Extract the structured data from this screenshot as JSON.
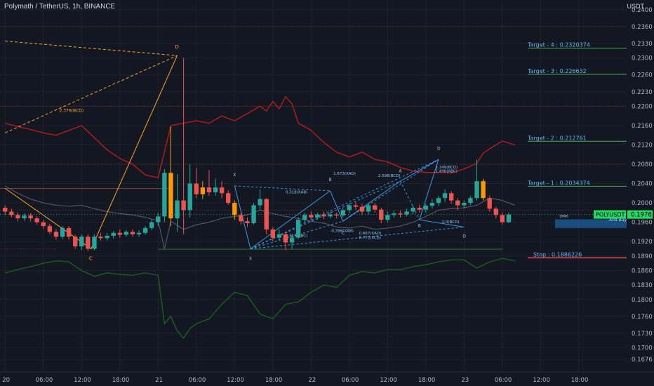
{
  "header": {
    "title": "Polymath / TetherUS, 1h, BINANCE",
    "currency": "USDT"
  },
  "colors": {
    "background": "#131722",
    "grid": "#1e222d",
    "text": "#b2b5be",
    "candle_up": "#26a69a",
    "candle_down": "#ef5350",
    "candle_highlight": "#ff9800",
    "harmonic_orange": "#ffa726",
    "harmonic_blue": "#42a5f5",
    "band_red": "#b71c1c",
    "band_green": "#1b5e20",
    "target_green": "#4caf50",
    "stop_red": "#ef5350",
    "price_tag": "#26d966"
  },
  "chart_data": {
    "type": "candlestick",
    "title": "Polymath / TetherUS, 1h, BINANCE",
    "xlabel": "",
    "ylabel": "USDT",
    "ylim": [
      0.165,
      0.242
    ],
    "ytick_labels": [
      "0.2400",
      "0.2360",
      "0.2330",
      "0.2300",
      "0.2260",
      "0.2230",
      "0.2200",
      "0.2160",
      "0.2120",
      "0.2080",
      "0.2040",
      "0.2000",
      "0.1960",
      "0.1920",
      "0.1890",
      "0.1860",
      "0.1830",
      "0.1800",
      "0.1760",
      "0.1730",
      "0.1700",
      "0.1676"
    ],
    "ytick_values": [
      0.24,
      0.2365,
      0.233,
      0.23,
      0.2265,
      0.223,
      0.22,
      0.216,
      0.212,
      0.208,
      0.204,
      0.2,
      0.196,
      0.192,
      0.189,
      0.186,
      0.183,
      0.18,
      0.1765,
      0.173,
      0.17,
      0.1676
    ],
    "xtick_labels": [
      "20",
      "06:00",
      "12:00",
      "18:00",
      "21",
      "06:00",
      "12:00",
      "18:00",
      "22",
      "06:00",
      "12:00",
      "18:00",
      "23",
      "06:00",
      "12:00",
      "18:00"
    ],
    "xtick_hours": [
      0,
      6,
      12,
      18,
      24,
      30,
      36,
      42,
      48,
      54,
      60,
      66,
      72,
      78,
      84,
      90
    ],
    "current_price": "0.1976",
    "symbol_tag": "POLYUSDT",
    "candles": [
      {
        "t": 0,
        "o": 0.199,
        "c": 0.1982,
        "h": 0.1995,
        "l": 0.1975
      },
      {
        "t": 1,
        "o": 0.1982,
        "c": 0.1975,
        "h": 0.1988,
        "l": 0.197
      },
      {
        "t": 2,
        "o": 0.1975,
        "c": 0.1968,
        "h": 0.198,
        "l": 0.1962
      },
      {
        "t": 3,
        "o": 0.1968,
        "c": 0.1974,
        "h": 0.1978,
        "l": 0.1963
      },
      {
        "t": 4,
        "o": 0.1974,
        "c": 0.1968,
        "h": 0.1979,
        "l": 0.1962
      },
      {
        "t": 5,
        "o": 0.1968,
        "c": 0.196,
        "h": 0.1972,
        "l": 0.1955
      },
      {
        "t": 6,
        "o": 0.196,
        "c": 0.1952,
        "h": 0.1965,
        "l": 0.1946
      },
      {
        "t": 7,
        "o": 0.1952,
        "c": 0.194,
        "h": 0.1957,
        "l": 0.1935
      },
      {
        "t": 8,
        "o": 0.194,
        "c": 0.193,
        "h": 0.1946,
        "l": 0.1924
      },
      {
        "t": 9,
        "o": 0.193,
        "c": 0.1948,
        "h": 0.1952,
        "l": 0.1925
      },
      {
        "t": 10,
        "o": 0.1948,
        "c": 0.193,
        "h": 0.1952,
        "l": 0.1924
      },
      {
        "t": 11,
        "o": 0.193,
        "c": 0.191,
        "h": 0.1934,
        "l": 0.1905
      },
      {
        "t": 12,
        "o": 0.191,
        "c": 0.193,
        "h": 0.1935,
        "l": 0.1902
      },
      {
        "t": 13,
        "o": 0.193,
        "c": 0.1905,
        "h": 0.1935,
        "l": 0.19
      },
      {
        "t": 14,
        "o": 0.1905,
        "c": 0.193,
        "h": 0.1935,
        "l": 0.1902
      },
      {
        "t": 15,
        "o": 0.193,
        "c": 0.1927,
        "h": 0.1938,
        "l": 0.1922
      },
      {
        "t": 16,
        "o": 0.1927,
        "c": 0.1932,
        "h": 0.1938,
        "l": 0.1922
      },
      {
        "t": 17,
        "o": 0.1932,
        "c": 0.1938,
        "h": 0.1942,
        "l": 0.1926
      },
      {
        "t": 18,
        "o": 0.1938,
        "c": 0.1934,
        "h": 0.1945,
        "l": 0.1928
      },
      {
        "t": 19,
        "o": 0.1934,
        "c": 0.194,
        "h": 0.1944,
        "l": 0.193
      },
      {
        "t": 20,
        "o": 0.194,
        "c": 0.1935,
        "h": 0.1945,
        "l": 0.193
      },
      {
        "t": 21,
        "o": 0.1935,
        "c": 0.1938,
        "h": 0.1943,
        "l": 0.193
      },
      {
        "t": 22,
        "o": 0.1938,
        "c": 0.1948,
        "h": 0.1952,
        "l": 0.1934
      },
      {
        "t": 23,
        "o": 0.1948,
        "c": 0.196,
        "h": 0.1966,
        "l": 0.1944
      },
      {
        "t": 24,
        "o": 0.196,
        "c": 0.1972,
        "h": 0.198,
        "l": 0.1952
      },
      {
        "t": 25,
        "o": 0.1972,
        "c": 0.2062,
        "h": 0.207,
        "l": 0.196
      },
      {
        "t": 26,
        "o": 0.2062,
        "c": 0.1968,
        "h": 0.2158,
        "l": 0.1952,
        "highlight": true
      },
      {
        "t": 27,
        "o": 0.1968,
        "c": 0.2005,
        "h": 0.206,
        "l": 0.194
      },
      {
        "t": 28,
        "o": 0.2005,
        "c": 0.1985,
        "h": 0.23,
        "l": 0.1935
      },
      {
        "t": 29,
        "o": 0.1985,
        "c": 0.204,
        "h": 0.208,
        "l": 0.197
      },
      {
        "t": 30,
        "o": 0.204,
        "c": 0.2018,
        "h": 0.2072,
        "l": 0.201
      },
      {
        "t": 31,
        "o": 0.2018,
        "c": 0.2032,
        "h": 0.2045,
        "l": 0.2008,
        "highlight": true
      },
      {
        "t": 32,
        "o": 0.2032,
        "c": 0.2022,
        "h": 0.2068,
        "l": 0.2015
      },
      {
        "t": 33,
        "o": 0.2022,
        "c": 0.2032,
        "h": 0.205,
        "l": 0.2015
      },
      {
        "t": 34,
        "o": 0.2032,
        "c": 0.202,
        "h": 0.2045,
        "l": 0.201
      },
      {
        "t": 35,
        "o": 0.202,
        "c": 0.2,
        "h": 0.2026,
        "l": 0.1996
      },
      {
        "t": 36,
        "o": 0.2,
        "c": 0.1975,
        "h": 0.2005,
        "l": 0.1965,
        "highlight": true
      },
      {
        "t": 37,
        "o": 0.1975,
        "c": 0.1962,
        "h": 0.198,
        "l": 0.1955
      },
      {
        "t": 38,
        "o": 0.1962,
        "c": 0.1958,
        "h": 0.197,
        "l": 0.195
      },
      {
        "t": 39,
        "o": 0.1958,
        "c": 0.1995,
        "h": 0.2,
        "l": 0.1955
      },
      {
        "t": 40,
        "o": 0.1995,
        "c": 0.2008,
        "h": 0.2028,
        "l": 0.1985
      },
      {
        "t": 41,
        "o": 0.2008,
        "c": 0.1945,
        "h": 0.201,
        "l": 0.1935
      },
      {
        "t": 42,
        "o": 0.1945,
        "c": 0.1928,
        "h": 0.195,
        "l": 0.192
      },
      {
        "t": 43,
        "o": 0.1928,
        "c": 0.1935,
        "h": 0.1945,
        "l": 0.1922
      },
      {
        "t": 44,
        "o": 0.1935,
        "c": 0.1918,
        "h": 0.194,
        "l": 0.1902
      },
      {
        "t": 45,
        "o": 0.1918,
        "c": 0.1928,
        "h": 0.1935,
        "l": 0.1905
      },
      {
        "t": 46,
        "o": 0.1928,
        "c": 0.1965,
        "h": 0.197,
        "l": 0.1925
      },
      {
        "t": 47,
        "o": 0.1965,
        "c": 0.1975,
        "h": 0.198,
        "l": 0.1958
      },
      {
        "t": 48,
        "o": 0.1975,
        "c": 0.197,
        "h": 0.1982,
        "l": 0.1965
      },
      {
        "t": 49,
        "o": 0.197,
        "c": 0.1976,
        "h": 0.198,
        "l": 0.1965
      },
      {
        "t": 50,
        "o": 0.1976,
        "c": 0.1972,
        "h": 0.1982,
        "l": 0.1966
      },
      {
        "t": 51,
        "o": 0.1972,
        "c": 0.1976,
        "h": 0.1982,
        "l": 0.1968
      },
      {
        "t": 52,
        "o": 0.1976,
        "c": 0.1974,
        "h": 0.198,
        "l": 0.1968
      },
      {
        "t": 53,
        "o": 0.1974,
        "c": 0.1985,
        "h": 0.199,
        "l": 0.197
      },
      {
        "t": 54,
        "o": 0.1985,
        "c": 0.1995,
        "h": 0.2,
        "l": 0.1978
      },
      {
        "t": 55,
        "o": 0.1995,
        "c": 0.1992,
        "h": 0.2002,
        "l": 0.1986
      },
      {
        "t": 56,
        "o": 0.1992,
        "c": 0.1982,
        "h": 0.1998,
        "l": 0.1975
      },
      {
        "t": 57,
        "o": 0.1982,
        "c": 0.1995,
        "h": 0.2,
        "l": 0.1976
      },
      {
        "t": 58,
        "o": 0.1995,
        "c": 0.1986,
        "h": 0.2,
        "l": 0.198
      },
      {
        "t": 59,
        "o": 0.1986,
        "c": 0.1965,
        "h": 0.199,
        "l": 0.1958
      },
      {
        "t": 60,
        "o": 0.1965,
        "c": 0.1975,
        "h": 0.1982,
        "l": 0.196
      },
      {
        "t": 61,
        "o": 0.1975,
        "c": 0.1978,
        "h": 0.1984,
        "l": 0.197
      },
      {
        "t": 62,
        "o": 0.1978,
        "c": 0.1976,
        "h": 0.1984,
        "l": 0.197
      },
      {
        "t": 63,
        "o": 0.1976,
        "c": 0.1982,
        "h": 0.1988,
        "l": 0.1972
      },
      {
        "t": 64,
        "o": 0.1982,
        "c": 0.199,
        "h": 0.1995,
        "l": 0.1976
      },
      {
        "t": 65,
        "o": 0.199,
        "c": 0.1986,
        "h": 0.1996,
        "l": 0.198
      },
      {
        "t": 66,
        "o": 0.1986,
        "c": 0.1994,
        "h": 0.1998,
        "l": 0.198
      },
      {
        "t": 67,
        "o": 0.1994,
        "c": 0.2,
        "h": 0.2008,
        "l": 0.1988
      },
      {
        "t": 68,
        "o": 0.2,
        "c": 0.201,
        "h": 0.2015,
        "l": 0.1994
      },
      {
        "t": 69,
        "o": 0.201,
        "c": 0.202,
        "h": 0.2028,
        "l": 0.2002
      },
      {
        "t": 70,
        "o": 0.202,
        "c": 0.2005,
        "h": 0.2024,
        "l": 0.1998
      },
      {
        "t": 71,
        "o": 0.2005,
        "c": 0.1995,
        "h": 0.201,
        "l": 0.1985
      },
      {
        "t": 72,
        "o": 0.1995,
        "c": 0.2,
        "h": 0.2005,
        "l": 0.1988
      },
      {
        "t": 73,
        "o": 0.2,
        "c": 0.201,
        "h": 0.2015,
        "l": 0.1995
      },
      {
        "t": 74,
        "o": 0.201,
        "c": 0.2045,
        "h": 0.209,
        "l": 0.2005
      },
      {
        "t": 75,
        "o": 0.2045,
        "c": 0.201,
        "h": 0.205,
        "l": 0.2005,
        "highlight": true
      },
      {
        "t": 76,
        "o": 0.201,
        "c": 0.1988,
        "h": 0.2015,
        "l": 0.1982
      },
      {
        "t": 77,
        "o": 0.1988,
        "c": 0.1975,
        "h": 0.1992,
        "l": 0.1968
      },
      {
        "t": 78,
        "o": 0.1975,
        "c": 0.196,
        "h": 0.198,
        "l": 0.1955
      },
      {
        "t": 79,
        "o": 0.196,
        "c": 0.1976,
        "h": 0.198,
        "l": 0.1958
      }
    ],
    "upper_band": [
      [
        0,
        0.2165
      ],
      [
        2,
        0.2158
      ],
      [
        4,
        0.2152
      ],
      [
        6,
        0.2145
      ],
      [
        8,
        0.214
      ],
      [
        10,
        0.215
      ],
      [
        12,
        0.216
      ],
      [
        14,
        0.2135
      ],
      [
        16,
        0.211
      ],
      [
        18,
        0.2092
      ],
      [
        20,
        0.208
      ],
      [
        22,
        0.2058
      ],
      [
        24,
        0.2052
      ],
      [
        26,
        0.216
      ],
      [
        28,
        0.2165
      ],
      [
        30,
        0.217
      ],
      [
        32,
        0.2165
      ],
      [
        34,
        0.218
      ],
      [
        36,
        0.217
      ],
      [
        38,
        0.2185
      ],
      [
        40,
        0.22
      ],
      [
        41,
        0.219
      ],
      [
        42,
        0.221
      ],
      [
        43,
        0.2195
      ],
      [
        44,
        0.222
      ],
      [
        45,
        0.2205
      ],
      [
        46,
        0.2165
      ],
      [
        48,
        0.215
      ],
      [
        50,
        0.2125
      ],
      [
        52,
        0.2105
      ],
      [
        54,
        0.2095
      ],
      [
        56,
        0.2105
      ],
      [
        58,
        0.209
      ],
      [
        60,
        0.2085
      ],
      [
        62,
        0.2073
      ],
      [
        64,
        0.2066
      ],
      [
        66,
        0.2063
      ],
      [
        68,
        0.2063
      ],
      [
        70,
        0.2062
      ],
      [
        72,
        0.207
      ],
      [
        74,
        0.2082
      ],
      [
        75,
        0.2103
      ],
      [
        76,
        0.2112
      ],
      [
        78,
        0.2128
      ],
      [
        80,
        0.212
      ]
    ],
    "lower_band": [
      [
        0,
        0.1855
      ],
      [
        2,
        0.1862
      ],
      [
        4,
        0.1868
      ],
      [
        6,
        0.1875
      ],
      [
        8,
        0.188
      ],
      [
        10,
        0.1878
      ],
      [
        12,
        0.186
      ],
      [
        14,
        0.1848
      ],
      [
        16,
        0.1855
      ],
      [
        18,
        0.1852
      ],
      [
        20,
        0.185
      ],
      [
        22,
        0.1855
      ],
      [
        24,
        0.185
      ],
      [
        25,
        0.175
      ],
      [
        26,
        0.1765
      ],
      [
        27,
        0.1735
      ],
      [
        28,
        0.172
      ],
      [
        29,
        0.174
      ],
      [
        30,
        0.175
      ],
      [
        32,
        0.176
      ],
      [
        34,
        0.179
      ],
      [
        36,
        0.1815
      ],
      [
        38,
        0.1808
      ],
      [
        40,
        0.177
      ],
      [
        42,
        0.176
      ],
      [
        44,
        0.179
      ],
      [
        46,
        0.1795
      ],
      [
        48,
        0.1815
      ],
      [
        50,
        0.183
      ],
      [
        52,
        0.1825
      ],
      [
        54,
        0.185
      ],
      [
        56,
        0.1858
      ],
      [
        58,
        0.1855
      ],
      [
        60,
        0.1862
      ],
      [
        62,
        0.1862
      ],
      [
        64,
        0.1868
      ],
      [
        66,
        0.1872
      ],
      [
        68,
        0.1878
      ],
      [
        70,
        0.1882
      ],
      [
        72,
        0.1882
      ],
      [
        74,
        0.1865
      ],
      [
        76,
        0.1878
      ],
      [
        78,
        0.1885
      ],
      [
        80,
        0.188
      ]
    ],
    "mid_line": [
      [
        0,
        0.2035
      ],
      [
        2,
        0.202
      ],
      [
        4,
        0.2008
      ],
      [
        6,
        0.2
      ],
      [
        8,
        0.1995
      ],
      [
        10,
        0.1993
      ],
      [
        12,
        0.1995
      ],
      [
        14,
        0.1988
      ],
      [
        16,
        0.1982
      ],
      [
        18,
        0.1978
      ],
      [
        20,
        0.1975
      ],
      [
        22,
        0.197
      ],
      [
        24,
        0.1963
      ],
      [
        25,
        0.1905
      ],
      [
        26,
        0.1962
      ],
      [
        28,
        0.1945
      ],
      [
        30,
        0.1955
      ],
      [
        32,
        0.196
      ],
      [
        34,
        0.1968
      ],
      [
        36,
        0.1972
      ],
      [
        38,
        0.1975
      ],
      [
        40,
        0.1985
      ],
      [
        42,
        0.1978
      ],
      [
        44,
        0.1972
      ],
      [
        46,
        0.1968
      ],
      [
        48,
        0.1962
      ],
      [
        50,
        0.1958
      ],
      [
        52,
        0.195
      ],
      [
        54,
        0.1948
      ],
      [
        56,
        0.1952
      ],
      [
        58,
        0.1945
      ],
      [
        60,
        0.1948
      ],
      [
        62,
        0.1952
      ],
      [
        64,
        0.196
      ],
      [
        66,
        0.1972
      ],
      [
        68,
        0.1985
      ],
      [
        70,
        0.1988
      ],
      [
        72,
        0.199
      ],
      [
        74,
        0.1995
      ],
      [
        76,
        0.201
      ],
      [
        78,
        0.2005
      ],
      [
        80,
        0.1995
      ]
    ],
    "resistance_levels": [
      0.2365,
      0.22,
      0.208,
      0.1985
    ],
    "support_levels": [
      0.1905
    ],
    "targets": [
      {
        "label": "Target - 4 : 0.2320374",
        "value": 0.2320374
      },
      {
        "label": "Target - 3 : 0.226632",
        "value": 0.226632
      },
      {
        "label": "Target - 2 : 0.212761",
        "value": 0.212761
      },
      {
        "label": "Target - 1 : 0.2034374",
        "value": 0.2034374
      }
    ],
    "stop": {
      "label": "Stop : 0.1886226",
      "value": 0.1886226
    },
    "entry_box_label": "And Buy",
    "entry_box_small": "19660",
    "harmonic_orange": {
      "points": [
        {
          "name": "",
          "t": 0,
          "v": 0.203
        },
        {
          "name": "C",
          "t": 13.5,
          "v": 0.1905
        },
        {
          "name": "D",
          "t": 27,
          "v": 0.2305
        }
      ],
      "dashed": [
        {
          "from": [
            0,
            0.2335
          ],
          "to": [
            27,
            0.2305
          ]
        },
        {
          "from": [
            0,
            0.2145
          ],
          "to": [
            27,
            0.2305
          ]
        }
      ],
      "ratio_label": "2.376(BCD)"
    },
    "harmonic_blue": {
      "points": [
        {
          "name": "X",
          "t": 36,
          "v": 0.2035
        },
        {
          "name": "X",
          "t": 38.5,
          "v": 0.1905
        },
        {
          "name": "B",
          "t": 51,
          "v": 0.2025
        },
        {
          "name": "C",
          "t": 53,
          "v": 0.1962
        },
        {
          "name": "A",
          "t": 62,
          "v": 0.2045
        },
        {
          "name": "D",
          "t": 68,
          "v": 0.209
        },
        {
          "name": "B",
          "t": 65,
          "v": 0.1965
        },
        {
          "name": "D",
          "t": 72,
          "v": 0.195
        }
      ],
      "labels": [
        "0.318(XAB)",
        "0.515(ABC)",
        "1.673(XAD)",
        "2.596(BCD)",
        "2.249(BCD)",
        "1.496(ABC)",
        "-0.398(XAB)",
        "0.667(XAD)",
        "0.772(XCD)",
        "1.0(BCD)"
      ]
    }
  }
}
